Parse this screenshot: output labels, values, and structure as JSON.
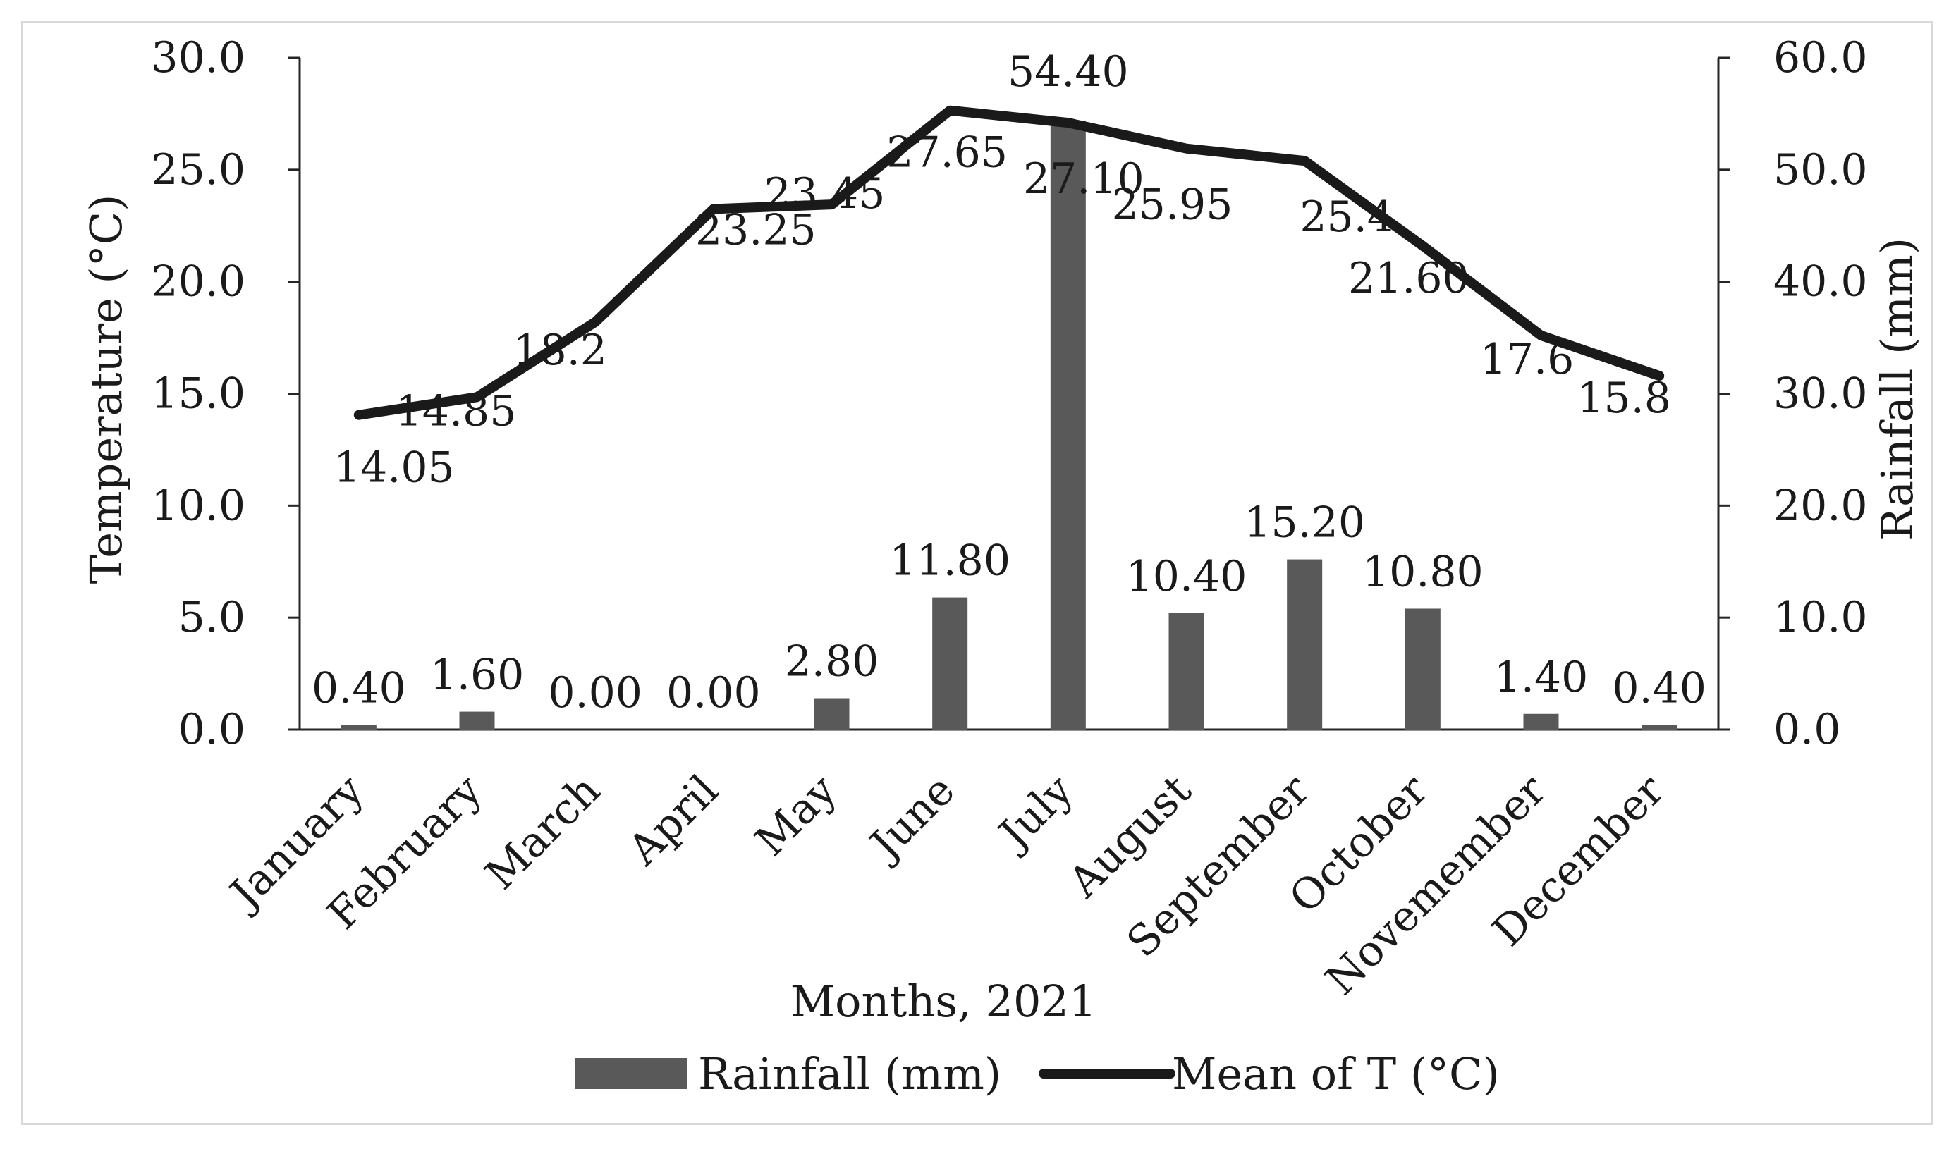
{
  "chart_data": {
    "type": "bar",
    "categories": [
      "January",
      "February",
      "March",
      "April",
      "May",
      "June",
      "July",
      "August",
      "September",
      "October",
      "Novemember",
      "December"
    ],
    "xlabel": "Months, 2021",
    "ylabel": "Temperature (°C)",
    "y2label": "Rainfall (mm)",
    "ylim": [
      0,
      30
    ],
    "y2lim": [
      0,
      60
    ],
    "yticks": [
      "0.0",
      "5.0",
      "10.0",
      "15.0",
      "20.0",
      "25.0",
      "30.0"
    ],
    "y2ticks": [
      "0.0",
      "10.0",
      "20.0",
      "30.0",
      "40.0",
      "50.0",
      "60.0"
    ],
    "series": [
      {
        "name": "Rainfall (mm)",
        "type": "bar",
        "axis": "right",
        "color": "#595959",
        "values": [
          0.4,
          1.6,
          0.0,
          0.0,
          2.8,
          11.8,
          54.4,
          10.4,
          15.2,
          10.8,
          1.4,
          0.4
        ],
        "labels": [
          "0.40",
          "1.60",
          "0.00",
          "0.00",
          "2.80",
          "11.80",
          "54.40",
          "10.40",
          "15.20",
          "10.80",
          "1.40",
          "0.40"
        ]
      },
      {
        "name": "Mean of T (°C)",
        "type": "line",
        "axis": "left",
        "color": "#1a1a1a",
        "values": [
          14.05,
          14.85,
          18.2,
          23.25,
          23.45,
          27.65,
          27.1,
          25.95,
          25.4,
          21.6,
          17.6,
          15.8
        ],
        "labels": [
          "14.05",
          "14.85",
          "18.2",
          "23.25",
          "23.45",
          "27.65",
          "27.10",
          "25.95",
          "25.4",
          "21.60",
          "17.6",
          "15.8"
        ]
      }
    ],
    "legend": {
      "position": "bottom",
      "items": [
        "Rainfall (mm)",
        "Mean of T (°C)"
      ]
    }
  }
}
